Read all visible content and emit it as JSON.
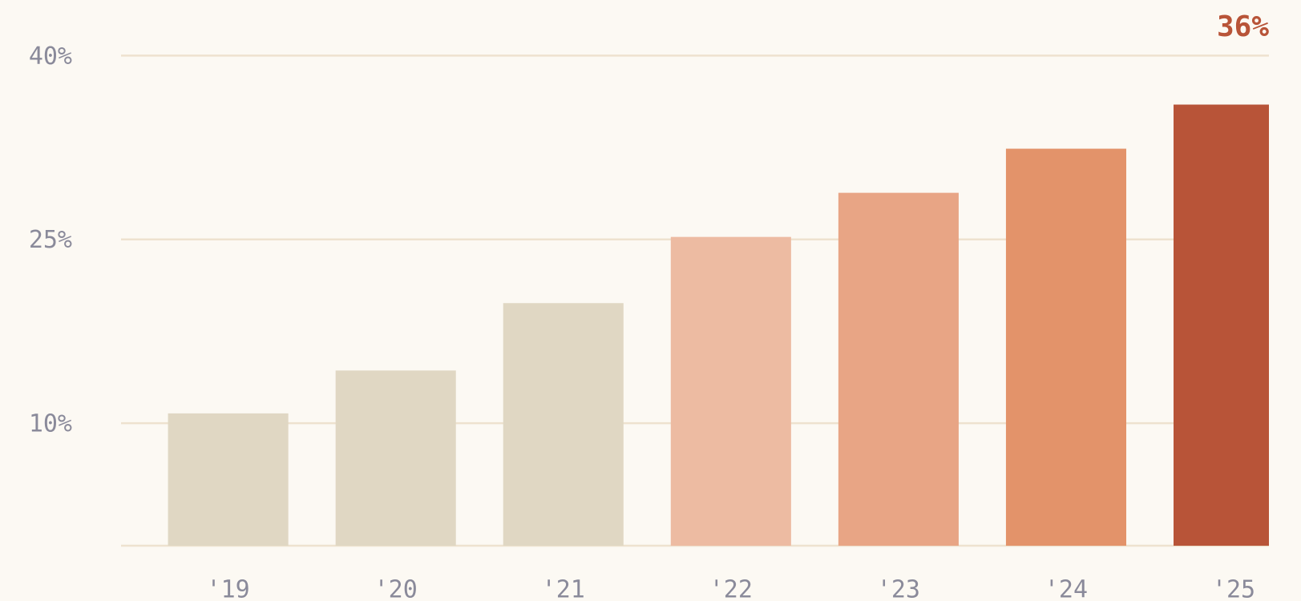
{
  "chart_data": {
    "type": "bar",
    "categories": [
      "'19",
      "'20",
      "'21",
      "'22",
      "'23",
      "'24",
      "'25"
    ],
    "values": [
      10.8,
      14.3,
      19.8,
      25.2,
      28.8,
      32.4,
      36
    ],
    "value_labels": [
      null,
      null,
      null,
      null,
      null,
      null,
      "36%"
    ],
    "colors": [
      "#e0d7c3",
      "#e0d7c3",
      "#e0d7c3",
      "#edbba2",
      "#e8a585",
      "#e3936a",
      "#b85438"
    ],
    "ylim": [
      0,
      40
    ],
    "yticks": [
      {
        "value": 10,
        "label": "10%"
      },
      {
        "value": 25,
        "label": "25%"
      },
      {
        "value": 40,
        "label": "40%"
      }
    ],
    "grid": true
  }
}
